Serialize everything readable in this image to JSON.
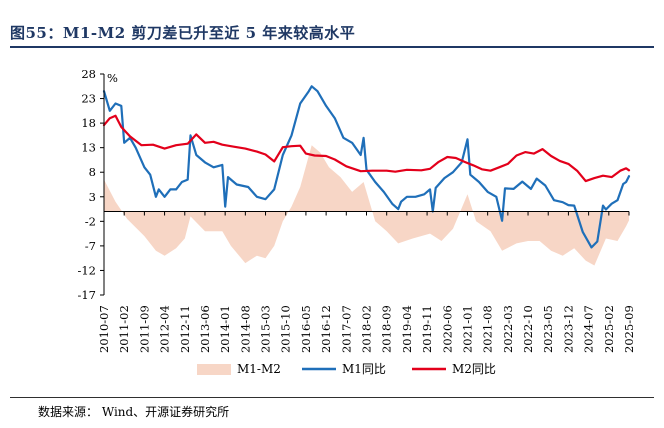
{
  "header": {
    "title": "图55：M1-M2 剪刀差已升至近 5 年来较高水平"
  },
  "footer": {
    "source": "数据来源：  Wind、开源证券研究所"
  },
  "colors": {
    "title": "#1f3864",
    "diff_fill": "#f7d6c6",
    "m1_line": "#1f6fb9",
    "m2_line": "#e3001b"
  },
  "chart_data": {
    "type": "line",
    "title": "图55：M1-M2 剪刀差已升至近 5 年来较高水平",
    "xlabel": "",
    "ylabel": "%",
    "ylim": [
      -17,
      28
    ],
    "yticks": [
      28,
      23,
      18,
      13,
      8,
      3,
      -2,
      -7,
      -12,
      -17
    ],
    "xticks": [
      "2010-07",
      "2011-02",
      "2011-09",
      "2012-04",
      "2012-11",
      "2013-06",
      "2014-01",
      "2014-08",
      "2015-03",
      "2015-10",
      "2016-05",
      "2016-12",
      "2017-07",
      "2018-02",
      "2018-09",
      "2019-04",
      "2019-11",
      "2020-06",
      "2021-01",
      "2021-08",
      "2022-03",
      "2022-10",
      "2023-05",
      "2023-12",
      "2024-07",
      "2025-02",
      "2025-09"
    ],
    "x_range": [
      "2010-07",
      "2025-09"
    ],
    "legend_position": "bottom",
    "series": [
      {
        "name": "M1-M2",
        "type": "area",
        "color": "#f7d6c6",
        "points": [
          [
            "2010-07",
            6.5
          ],
          [
            "2010-11",
            2.0
          ],
          [
            "2011-03",
            -1.5
          ],
          [
            "2011-09",
            -5.0
          ],
          [
            "2012-01",
            -8.0
          ],
          [
            "2012-04",
            -9.0
          ],
          [
            "2012-08",
            -7.5
          ],
          [
            "2012-11",
            -5.5
          ],
          [
            "2013-01",
            -1.0
          ],
          [
            "2013-06",
            -4.0
          ],
          [
            "2013-12",
            -4.0
          ],
          [
            "2014-03",
            -7.0
          ],
          [
            "2014-08",
            -10.5
          ],
          [
            "2014-12",
            -9.0
          ],
          [
            "2015-03",
            -9.5
          ],
          [
            "2015-06",
            -7.0
          ],
          [
            "2015-09",
            -2.0
          ],
          [
            "2015-12",
            1.0
          ],
          [
            "2016-03",
            5.0
          ],
          [
            "2016-07",
            13.5
          ],
          [
            "2016-10",
            12.0
          ],
          [
            "2017-01",
            9.0
          ],
          [
            "2017-05",
            7.0
          ],
          [
            "2017-09",
            4.0
          ],
          [
            "2018-01",
            6.0
          ],
          [
            "2018-05",
            -2.0
          ],
          [
            "2018-09",
            -4.0
          ],
          [
            "2019-01",
            -6.5
          ],
          [
            "2019-06",
            -5.5
          ],
          [
            "2019-12",
            -4.5
          ],
          [
            "2020-04",
            -6.0
          ],
          [
            "2020-08",
            -3.5
          ],
          [
            "2021-01",
            3.5
          ],
          [
            "2021-04",
            -2.0
          ],
          [
            "2021-09",
            -4.0
          ],
          [
            "2022-01",
            -8.0
          ],
          [
            "2022-06",
            -6.5
          ],
          [
            "2022-10",
            -6.0
          ],
          [
            "2023-02",
            -6.0
          ],
          [
            "2023-06",
            -8.0
          ],
          [
            "2023-10",
            -9.0
          ],
          [
            "2024-02",
            -7.5
          ],
          [
            "2024-06",
            -10.0
          ],
          [
            "2024-09",
            -11.0
          ],
          [
            "2025-01",
            -5.5
          ],
          [
            "2025-05",
            -6.0
          ],
          [
            "2025-08",
            -3.0
          ],
          [
            "2025-09",
            -1.8
          ]
        ]
      },
      {
        "name": "M1同比",
        "type": "line",
        "color": "#1f6fb9",
        "points": [
          [
            "2010-07",
            24.5
          ],
          [
            "2010-09",
            20.5
          ],
          [
            "2010-11",
            22.0
          ],
          [
            "2011-01",
            21.5
          ],
          [
            "2011-02",
            14.0
          ],
          [
            "2011-04",
            15.0
          ],
          [
            "2011-06",
            13.0
          ],
          [
            "2011-09",
            9.0
          ],
          [
            "2011-11",
            7.5
          ],
          [
            "2012-01",
            3.0
          ],
          [
            "2012-02",
            4.5
          ],
          [
            "2012-04",
            3.0
          ],
          [
            "2012-06",
            4.5
          ],
          [
            "2012-08",
            4.5
          ],
          [
            "2012-10",
            6.0
          ],
          [
            "2012-12",
            6.5
          ],
          [
            "2013-01",
            15.5
          ],
          [
            "2013-03",
            11.5
          ],
          [
            "2013-06",
            10.0
          ],
          [
            "2013-09",
            9.0
          ],
          [
            "2013-12",
            9.5
          ],
          [
            "2014-01",
            1.0
          ],
          [
            "2014-02",
            7.0
          ],
          [
            "2014-05",
            5.5
          ],
          [
            "2014-09",
            5.0
          ],
          [
            "2014-12",
            3.0
          ],
          [
            "2015-03",
            2.5
          ],
          [
            "2015-06",
            4.5
          ],
          [
            "2015-09",
            11.5
          ],
          [
            "2015-12",
            15.5
          ],
          [
            "2016-03",
            22.0
          ],
          [
            "2016-06",
            24.5
          ],
          [
            "2016-07",
            25.5
          ],
          [
            "2016-09",
            24.5
          ],
          [
            "2016-12",
            21.5
          ],
          [
            "2017-03",
            19.0
          ],
          [
            "2017-06",
            15.0
          ],
          [
            "2017-09",
            14.0
          ],
          [
            "2017-12",
            11.5
          ],
          [
            "2018-01",
            15.0
          ],
          [
            "2018-02",
            8.5
          ],
          [
            "2018-05",
            6.0
          ],
          [
            "2018-08",
            4.0
          ],
          [
            "2018-11",
            1.5
          ],
          [
            "2019-01",
            0.5
          ],
          [
            "2019-02",
            2.0
          ],
          [
            "2019-04",
            3.0
          ],
          [
            "2019-07",
            3.0
          ],
          [
            "2019-10",
            3.5
          ],
          [
            "2019-12",
            4.5
          ],
          [
            "2020-01",
            0.0
          ],
          [
            "2020-02",
            4.8
          ],
          [
            "2020-05",
            6.8
          ],
          [
            "2020-08",
            8.0
          ],
          [
            "2020-11",
            10.0
          ],
          [
            "2021-01",
            14.7
          ],
          [
            "2021-02",
            7.5
          ],
          [
            "2021-05",
            6.0
          ],
          [
            "2021-08",
            4.0
          ],
          [
            "2021-11",
            3.0
          ],
          [
            "2022-01",
            -1.9
          ],
          [
            "2022-02",
            4.7
          ],
          [
            "2022-05",
            4.6
          ],
          [
            "2022-08",
            6.1
          ],
          [
            "2022-11",
            4.6
          ],
          [
            "2023-01",
            6.7
          ],
          [
            "2023-04",
            5.3
          ],
          [
            "2023-07",
            2.3
          ],
          [
            "2023-10",
            1.9
          ],
          [
            "2023-12",
            1.3
          ],
          [
            "2024-02",
            1.2
          ],
          [
            "2024-05",
            -4.2
          ],
          [
            "2024-08",
            -7.3
          ],
          [
            "2024-10",
            -6.1
          ],
          [
            "2024-12",
            1.2
          ],
          [
            "2025-01",
            0.4
          ],
          [
            "2025-03",
            1.6
          ],
          [
            "2025-05",
            2.3
          ],
          [
            "2025-07",
            5.6
          ],
          [
            "2025-08",
            6.0
          ],
          [
            "2025-09",
            7.2
          ]
        ]
      },
      {
        "name": "M2同比",
        "type": "line",
        "color": "#e3001b",
        "points": [
          [
            "2010-07",
            17.6
          ],
          [
            "2010-09",
            19.0
          ],
          [
            "2010-11",
            19.5
          ],
          [
            "2011-01",
            17.2
          ],
          [
            "2011-04",
            15.3
          ],
          [
            "2011-08",
            13.5
          ],
          [
            "2011-12",
            13.6
          ],
          [
            "2012-04",
            12.8
          ],
          [
            "2012-08",
            13.5
          ],
          [
            "2012-12",
            13.8
          ],
          [
            "2013-03",
            15.7
          ],
          [
            "2013-06",
            14.0
          ],
          [
            "2013-09",
            14.2
          ],
          [
            "2013-12",
            13.6
          ],
          [
            "2014-04",
            13.2
          ],
          [
            "2014-08",
            12.8
          ],
          [
            "2014-12",
            12.2
          ],
          [
            "2015-03",
            11.6
          ],
          [
            "2015-06",
            10.2
          ],
          [
            "2015-09",
            13.1
          ],
          [
            "2015-12",
            13.3
          ],
          [
            "2016-03",
            13.4
          ],
          [
            "2016-05",
            11.8
          ],
          [
            "2016-08",
            11.4
          ],
          [
            "2016-12",
            11.3
          ],
          [
            "2017-03",
            10.6
          ],
          [
            "2017-07",
            9.2
          ],
          [
            "2017-12",
            8.2
          ],
          [
            "2018-04",
            8.3
          ],
          [
            "2018-09",
            8.3
          ],
          [
            "2018-12",
            8.1
          ],
          [
            "2019-04",
            8.5
          ],
          [
            "2019-09",
            8.4
          ],
          [
            "2019-12",
            8.7
          ],
          [
            "2020-03",
            10.1
          ],
          [
            "2020-06",
            11.1
          ],
          [
            "2020-09",
            10.9
          ],
          [
            "2020-12",
            10.1
          ],
          [
            "2021-03",
            9.4
          ],
          [
            "2021-06",
            8.6
          ],
          [
            "2021-09",
            8.3
          ],
          [
            "2021-12",
            9.0
          ],
          [
            "2022-03",
            9.7
          ],
          [
            "2022-06",
            11.4
          ],
          [
            "2022-09",
            12.1
          ],
          [
            "2022-12",
            11.8
          ],
          [
            "2023-03",
            12.7
          ],
          [
            "2023-06",
            11.3
          ],
          [
            "2023-09",
            10.3
          ],
          [
            "2023-12",
            9.7
          ],
          [
            "2024-03",
            8.3
          ],
          [
            "2024-06",
            6.2
          ],
          [
            "2024-09",
            6.8
          ],
          [
            "2024-12",
            7.3
          ],
          [
            "2025-03",
            7.0
          ],
          [
            "2025-06",
            8.3
          ],
          [
            "2025-08",
            8.8
          ],
          [
            "2025-09",
            8.4
          ]
        ]
      }
    ],
    "legend": [
      "M1-M2",
      "M1同比",
      "M2同比"
    ]
  }
}
